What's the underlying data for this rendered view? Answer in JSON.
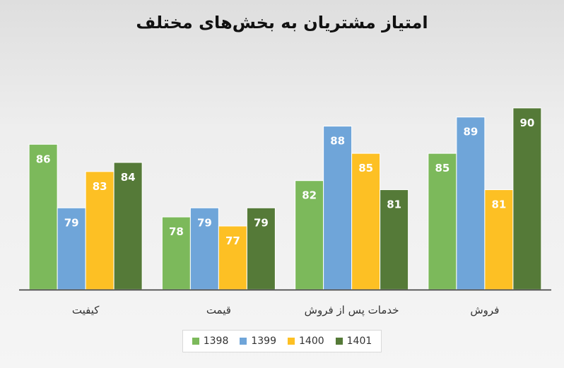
{
  "chart_data": {
    "type": "bar",
    "title": "امتیاز مشتریان به بخش‌های مختلف",
    "xlabel": "",
    "ylabel": "",
    "categories": [
      "کیفیت",
      "قیمت",
      "خدمات پس از فروش",
      "فروش"
    ],
    "series": [
      {
        "name": "1398",
        "color": "#7cb95b",
        "values": [
          86,
          78,
          82,
          85
        ]
      },
      {
        "name": "1399",
        "color": "#6fa5d9",
        "values": [
          79,
          79,
          88,
          89
        ]
      },
      {
        "name": "1400",
        "color": "#fdc024",
        "values": [
          83,
          77,
          85,
          81
        ]
      },
      {
        "name": "1401",
        "color": "#557a38",
        "values": [
          84,
          79,
          81,
          90
        ]
      }
    ],
    "ylim": [
      70,
      91
    ],
    "grid": false,
    "legend_position": "bottom",
    "data_labels": true
  }
}
